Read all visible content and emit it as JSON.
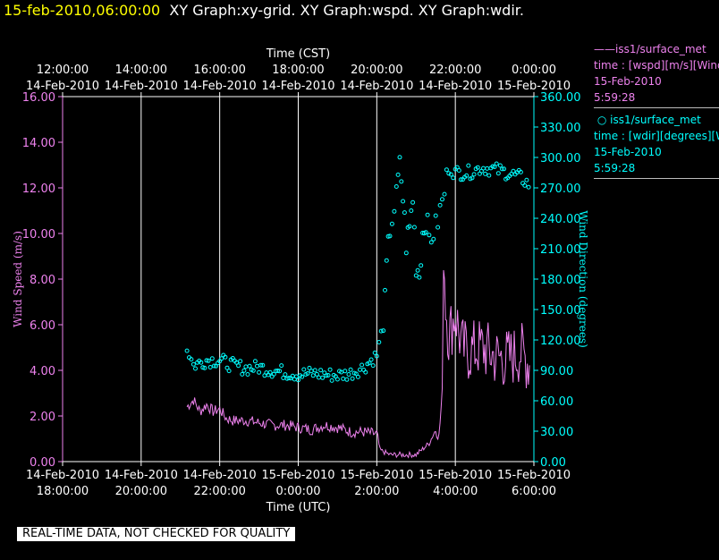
{
  "header": {
    "time": "15-feb-2010,06:00:00",
    "graphs": "XY Graph:xy-grid.  XY Graph:wspd.  XY Graph:wdir."
  },
  "legend": [
    {
      "symbol": "——",
      "name": "iss1/surface_met",
      "line1": "time : [wspd][m/s][Wind",
      "line2": "15-Feb-2010",
      "line3": "5:59:28",
      "color": "#ee82ee"
    },
    {
      "symbol": "○",
      "name": "iss1/surface_met",
      "line1": "time : [wdir][degrees][W",
      "line2": "15-Feb-2010",
      "line3": "5:59:28",
      "color": "#00ffff"
    }
  ],
  "footer": {
    "qc_note": "REAL-TIME DATA, NOT CHECKED FOR QUALITY"
  },
  "chart_data": {
    "type": "line",
    "top_axis": {
      "label": "Time (CST)",
      "ticks": [
        {
          "time": "12:00:00",
          "date": "14-Feb-2010"
        },
        {
          "time": "14:00:00",
          "date": "14-Feb-2010"
        },
        {
          "time": "16:00:00",
          "date": "14-Feb-2010"
        },
        {
          "time": "18:00:00",
          "date": "14-Feb-2010"
        },
        {
          "time": "20:00:00",
          "date": "14-Feb-2010"
        },
        {
          "time": "22:00:00",
          "date": "14-Feb-2010"
        },
        {
          "time": "0:00:00",
          "date": "15-Feb-2010"
        }
      ]
    },
    "bottom_axis": {
      "label": "Time (UTC)",
      "ticks": [
        {
          "date": "14-Feb-2010",
          "time": "18:00:00"
        },
        {
          "date": "14-Feb-2010",
          "time": "20:00:00"
        },
        {
          "date": "14-Feb-2010",
          "time": "22:00:00"
        },
        {
          "date": "15-Feb-2010",
          "time": "0:00:00"
        },
        {
          "date": "15-Feb-2010",
          "time": "2:00:00"
        },
        {
          "date": "15-Feb-2010",
          "time": "4:00:00"
        },
        {
          "date": "15-Feb-2010",
          "time": "6:00:00"
        }
      ],
      "range_utc": [
        "2010-02-14T18:00",
        "2010-02-15T06:00"
      ]
    },
    "left_axis": {
      "label": "Wind Speed (m/s)",
      "ylim": [
        0,
        16
      ],
      "ticks": [
        "0.00",
        "2.00",
        "4.00",
        "6.00",
        "8.00",
        "10.00",
        "12.00",
        "14.00",
        "16.00"
      ]
    },
    "right_axis": {
      "label": "Wind Direction (degrees)",
      "ylim": [
        0,
        360
      ],
      "ticks": [
        "0.00",
        "30.00",
        "60.00",
        "90.00",
        "120.00",
        "150.00",
        "180.00",
        "210.00",
        "240.00",
        "270.00",
        "300.00",
        "330.00",
        "360.00"
      ]
    },
    "grid": "vertical lines only",
    "series": [
      {
        "name": "wspd",
        "style": "line",
        "axis": "left",
        "color": "#ee82ee",
        "points": [
          [
            "2010-02-14T21:10",
            2.4
          ],
          [
            "2010-02-14T21:20",
            2.7
          ],
          [
            "2010-02-14T21:30",
            2.2
          ],
          [
            "2010-02-14T21:40",
            2.5
          ],
          [
            "2010-02-14T21:50",
            2.2
          ],
          [
            "2010-02-14T22:00",
            2.3
          ],
          [
            "2010-02-14T22:10",
            1.9
          ],
          [
            "2010-02-14T22:20",
            1.8
          ],
          [
            "2010-02-14T22:40",
            1.8
          ],
          [
            "2010-02-14T23:00",
            1.7
          ],
          [
            "2010-02-14T23:20",
            1.6
          ],
          [
            "2010-02-14T23:40",
            1.6
          ],
          [
            "2010-02-15T00:00",
            1.5
          ],
          [
            "2010-02-15T00:20",
            1.4
          ],
          [
            "2010-02-15T00:40",
            1.6
          ],
          [
            "2010-02-15T01:00",
            1.5
          ],
          [
            "2010-02-15T01:20",
            1.3
          ],
          [
            "2010-02-15T01:40",
            1.3
          ],
          [
            "2010-02-15T02:00",
            1.2
          ],
          [
            "2010-02-15T02:05",
            0.5
          ],
          [
            "2010-02-15T02:20",
            0.3
          ],
          [
            "2010-02-15T02:40",
            0.3
          ],
          [
            "2010-02-15T03:00",
            0.3
          ],
          [
            "2010-02-15T03:20",
            0.8
          ],
          [
            "2010-02-15T03:30",
            1.4
          ],
          [
            "2010-02-15T03:35",
            1.1
          ],
          [
            "2010-02-15T03:40",
            3.0
          ],
          [
            "2010-02-15T03:42",
            9.5
          ],
          [
            "2010-02-15T03:45",
            7.0
          ],
          [
            "2010-02-15T03:50",
            5.5
          ],
          [
            "2010-02-15T04:00",
            6.5
          ],
          [
            "2010-02-15T04:10",
            5.0
          ],
          [
            "2010-02-15T04:20",
            4.8
          ],
          [
            "2010-02-15T04:40",
            5.0
          ],
          [
            "2010-02-15T05:00",
            4.6
          ],
          [
            "2010-02-15T05:20",
            4.5
          ],
          [
            "2010-02-15T05:40",
            4.8
          ],
          [
            "2010-02-15T05:55",
            4.2
          ]
        ]
      },
      {
        "name": "wdir",
        "style": "markers",
        "axis": "right",
        "color": "#00ffff",
        "points": [
          [
            "2010-02-14T21:10",
            112
          ],
          [
            "2010-02-14T21:20",
            95
          ],
          [
            "2010-02-14T21:40",
            100
          ],
          [
            "2010-02-14T22:00",
            100
          ],
          [
            "2010-02-14T22:20",
            95
          ],
          [
            "2010-02-14T22:40",
            92
          ],
          [
            "2010-02-14T23:00",
            93
          ],
          [
            "2010-02-14T23:20",
            90
          ],
          [
            "2010-02-14T23:40",
            88
          ],
          [
            "2010-02-15T00:00",
            86
          ],
          [
            "2010-02-15T00:20",
            87
          ],
          [
            "2010-02-15T00:40",
            86
          ],
          [
            "2010-02-15T01:00",
            85
          ],
          [
            "2010-02-15T01:20",
            87
          ],
          [
            "2010-02-15T01:40",
            93
          ],
          [
            "2010-02-15T02:00",
            105
          ],
          [
            "2010-02-15T02:10",
            135
          ],
          [
            "2010-02-15T02:15",
            190
          ],
          [
            "2010-02-15T02:20",
            230
          ],
          [
            "2010-02-15T02:30",
            260
          ],
          [
            "2010-02-15T02:35",
            295
          ],
          [
            "2010-02-15T02:40",
            260
          ],
          [
            "2010-02-15T02:45",
            215
          ],
          [
            "2010-02-15T02:50",
            230
          ],
          [
            "2010-02-15T02:55",
            260
          ],
          [
            "2010-02-15T03:00",
            195
          ],
          [
            "2010-02-15T03:05",
            185
          ],
          [
            "2010-02-15T03:10",
            225
          ],
          [
            "2010-02-15T03:15",
            240
          ],
          [
            "2010-02-15T03:20",
            220
          ],
          [
            "2010-02-15T03:30",
            230
          ],
          [
            "2010-02-15T03:40",
            255
          ],
          [
            "2010-02-15T03:50",
            290
          ],
          [
            "2010-02-15T04:00",
            285
          ],
          [
            "2010-02-15T04:20",
            285
          ],
          [
            "2010-02-15T04:40",
            290
          ],
          [
            "2010-02-15T05:00",
            288
          ],
          [
            "2010-02-15T05:20",
            285
          ],
          [
            "2010-02-15T05:40",
            280
          ],
          [
            "2010-02-15T05:55",
            272
          ]
        ]
      }
    ]
  }
}
